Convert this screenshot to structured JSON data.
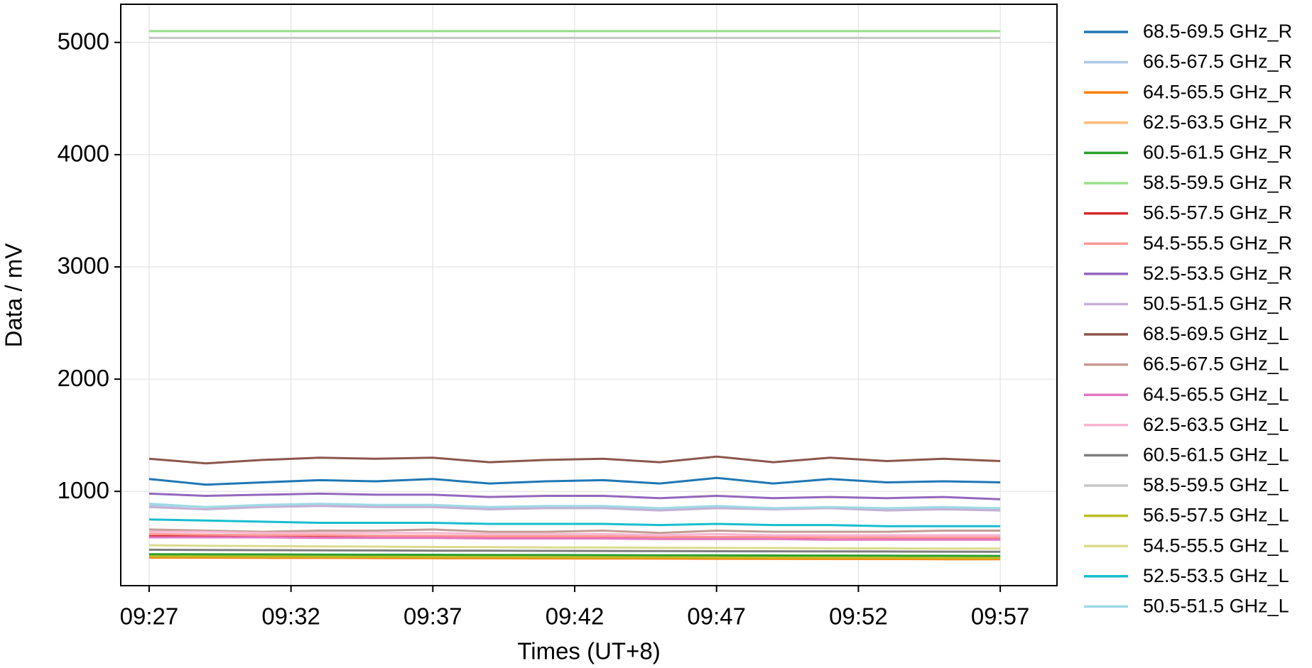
{
  "chart_data": {
    "type": "line",
    "x_label": "Times (UT+8)",
    "y_label": "Data / mV",
    "x": [
      "09:27",
      "09:29",
      "09:31",
      "09:33",
      "09:35",
      "09:37",
      "09:39",
      "09:41",
      "09:43",
      "09:45",
      "09:47",
      "09:49",
      "09:51",
      "09:53",
      "09:55",
      "09:57"
    ],
    "xlim": [
      "09:26",
      "09:59"
    ],
    "xticks": [
      "09:27",
      "09:32",
      "09:37",
      "09:42",
      "09:47",
      "09:52",
      "09:57"
    ],
    "ylim": [
      160,
      5340
    ],
    "yticks": [
      1000,
      2000,
      3000,
      4000,
      5000
    ],
    "grid": true,
    "series": [
      {
        "name": "68.5-69.5 GHz_R",
        "color": "#1f77b4",
        "values": [
          1110,
          1060,
          1080,
          1100,
          1090,
          1110,
          1070,
          1090,
          1100,
          1070,
          1120,
          1070,
          1110,
          1080,
          1090,
          1080
        ]
      },
      {
        "name": "66.5-67.5 GHz_R",
        "color": "#aec7e8",
        "values": [
          880,
          860,
          870,
          880,
          870,
          880,
          850,
          860,
          860,
          840,
          860,
          850,
          850,
          840,
          850,
          840
        ]
      },
      {
        "name": "64.5-65.5 GHz_R",
        "color": "#ff7f0e",
        "values": [
          410,
          409,
          408,
          407,
          406,
          405,
          404,
          403,
          402,
          401,
          400,
          399,
          398,
          397,
          396,
          395
        ]
      },
      {
        "name": "62.5-63.5 GHz_R",
        "color": "#ffbb78",
        "values": [
          430,
          428,
          426,
          425,
          424,
          422,
          421,
          420,
          419,
          418,
          417,
          416,
          415,
          414,
          413,
          412
        ]
      },
      {
        "name": "60.5-61.5 GHz_R",
        "color": "#2ca02c",
        "values": [
          440,
          439,
          438,
          437,
          436,
          435,
          434,
          433,
          432,
          431,
          430,
          429,
          428,
          427,
          426,
          425
        ]
      },
      {
        "name": "58.5-59.5 GHz_R",
        "color": "#98df8a",
        "values": [
          5100,
          5100,
          5100,
          5100,
          5100,
          5100,
          5100,
          5100,
          5100,
          5100,
          5100,
          5100,
          5100,
          5100,
          5100,
          5100
        ]
      },
      {
        "name": "56.5-57.5 GHz_R",
        "color": "#d62728",
        "values": [
          600,
          599,
          598,
          597,
          596,
          595,
          594,
          593,
          592,
          591,
          590,
          589,
          588,
          587,
          586,
          585
        ]
      },
      {
        "name": "54.5-55.5 GHz_R",
        "color": "#ff9896",
        "values": [
          620,
          615,
          610,
          610,
          605,
          605,
          600,
          600,
          600,
          595,
          595,
          595,
          590,
          590,
          590,
          590
        ]
      },
      {
        "name": "52.5-53.5 GHz_R",
        "color": "#9467bd",
        "values": [
          980,
          960,
          970,
          980,
          970,
          970,
          950,
          960,
          960,
          940,
          960,
          940,
          950,
          940,
          950,
          930
        ]
      },
      {
        "name": "50.5-51.5 GHz_R",
        "color": "#c5b0d5",
        "values": [
          860,
          840,
          860,
          870,
          860,
          860,
          840,
          850,
          850,
          830,
          850,
          840,
          850,
          830,
          840,
          830
        ]
      },
      {
        "name": "68.5-69.5 GHz_L",
        "color": "#8c564b",
        "values": [
          1290,
          1250,
          1280,
          1300,
          1290,
          1300,
          1260,
          1280,
          1290,
          1260,
          1310,
          1260,
          1300,
          1270,
          1290,
          1270
        ]
      },
      {
        "name": "66.5-67.5 GHz_L",
        "color": "#c49c94",
        "values": [
          660,
          650,
          640,
          650,
          650,
          660,
          640,
          640,
          650,
          630,
          650,
          640,
          640,
          640,
          650,
          650
        ]
      },
      {
        "name": "64.5-65.5 GHz_L",
        "color": "#e377c2",
        "values": [
          590,
          590,
          590,
          585,
          585,
          585,
          580,
          580,
          580,
          575,
          575,
          575,
          570,
          570,
          570,
          570
        ]
      },
      {
        "name": "62.5-63.5 GHz_L",
        "color": "#f7b6d2",
        "values": [
          640,
          640,
          630,
          630,
          630,
          630,
          620,
          620,
          620,
          610,
          620,
          610,
          610,
          610,
          610,
          610
        ]
      },
      {
        "name": "60.5-61.5 GHz_L",
        "color": "#7f7f7f",
        "values": [
          480,
          478,
          476,
          475,
          474,
          472,
          471,
          470,
          469,
          468,
          467,
          466,
          465,
          464,
          463,
          462
        ]
      },
      {
        "name": "58.5-59.5 GHz_L",
        "color": "#c7c7c7",
        "values": [
          5040,
          5040,
          5040,
          5040,
          5040,
          5040,
          5040,
          5040,
          5040,
          5040,
          5040,
          5040,
          5040,
          5040,
          5040,
          5040
        ]
      },
      {
        "name": "56.5-57.5 GHz_L",
        "color": "#bcbd22",
        "values": [
          420,
          419,
          418,
          417,
          416,
          415,
          414,
          413,
          412,
          411,
          410,
          409,
          408,
          407,
          406,
          405
        ]
      },
      {
        "name": "54.5-55.5 GHz_L",
        "color": "#dbdb8d",
        "values": [
          520,
          515,
          512,
          510,
          508,
          505,
          503,
          500,
          500,
          498,
          496,
          495,
          493,
          492,
          490,
          490
        ]
      },
      {
        "name": "52.5-53.5 GHz_L",
        "color": "#17becf",
        "values": [
          750,
          740,
          730,
          720,
          720,
          720,
          710,
          710,
          710,
          700,
          710,
          700,
          700,
          690,
          690,
          690
        ]
      },
      {
        "name": "50.5-51.5 GHz_L",
        "color": "#9edae5",
        "values": [
          890,
          860,
          880,
          890,
          880,
          880,
          860,
          870,
          870,
          850,
          870,
          850,
          860,
          850,
          860,
          850
        ]
      }
    ]
  }
}
